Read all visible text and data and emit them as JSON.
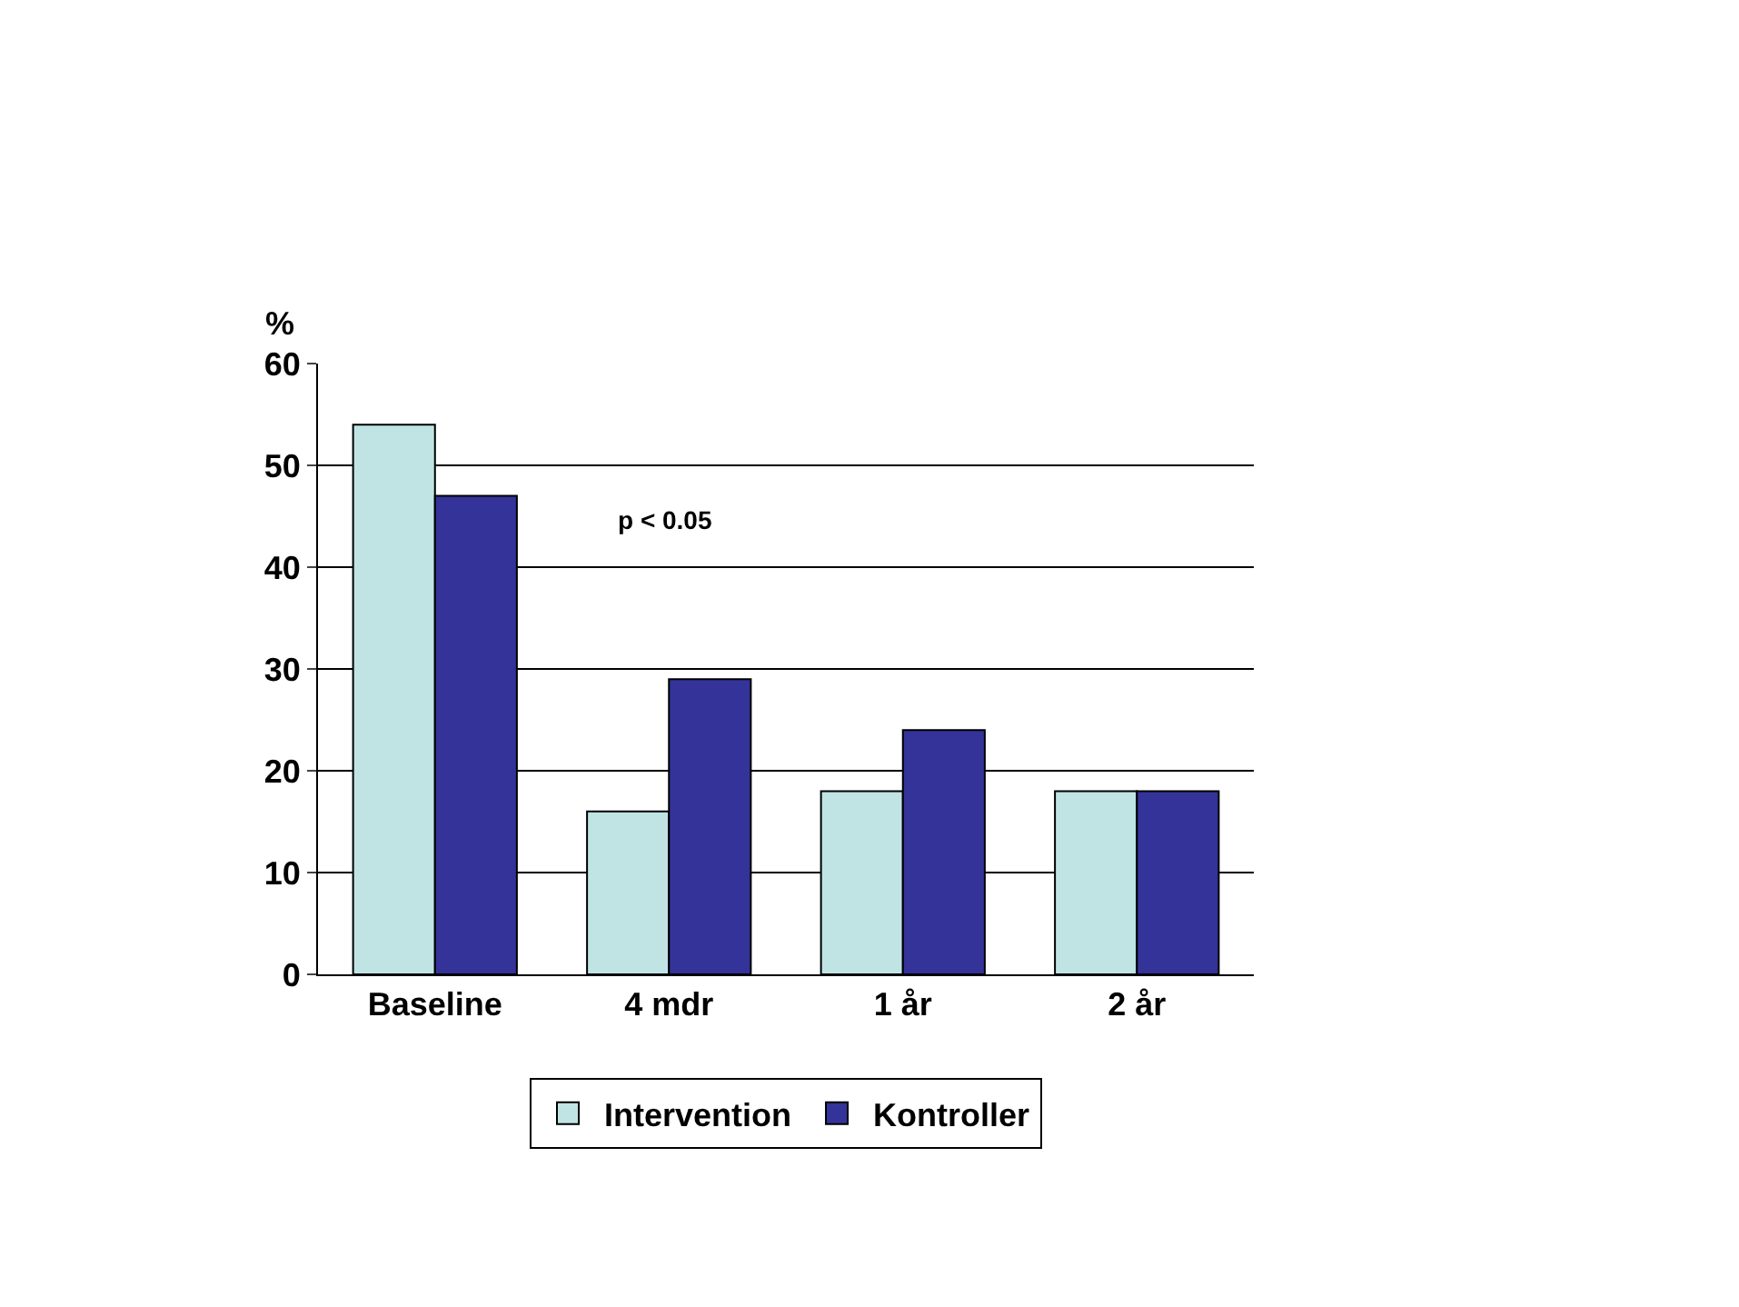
{
  "chart_data": {
    "type": "bar",
    "ylabel": "%",
    "categories": [
      "Baseline",
      "4 mdr",
      "1 år",
      "2 år"
    ],
    "series": [
      {
        "name": "Intervention",
        "color": "#c0e4e4",
        "values": [
          54,
          16,
          18,
          18
        ]
      },
      {
        "name": "Kontroller",
        "color": "#333399",
        "values": [
          47,
          29,
          24,
          18
        ]
      }
    ],
    "ylim": [
      0,
      60
    ],
    "yticks": [
      0,
      10,
      20,
      30,
      40,
      50,
      60
    ],
    "grid": "y",
    "legend": "bottom",
    "annotations": [
      "p < 0.05"
    ]
  }
}
